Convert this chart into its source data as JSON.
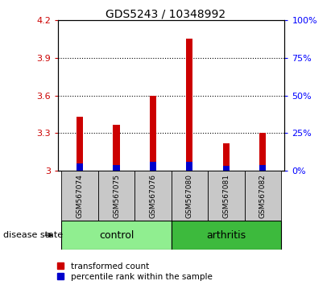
{
  "title": "GDS5243 / 10348992",
  "samples": [
    "GSM567074",
    "GSM567075",
    "GSM567076",
    "GSM567080",
    "GSM567081",
    "GSM567082"
  ],
  "red_values": [
    3.43,
    3.37,
    3.6,
    4.05,
    3.22,
    3.3
  ],
  "blue_values": [
    0.06,
    0.05,
    0.07,
    0.07,
    0.04,
    0.05
  ],
  "ymin": 3.0,
  "ymax": 4.2,
  "left_yticks": [
    3.0,
    3.3,
    3.6,
    3.9,
    4.2
  ],
  "right_yticks": [
    0,
    25,
    50,
    75,
    100
  ],
  "bar_width": 0.18,
  "red_color": "#cc0000",
  "blue_color": "#0000cc",
  "control_color": "#90ee90",
  "arthritis_color": "#3dba3d",
  "label_bg_color": "#c8c8c8",
  "group_label_text": "disease state",
  "legend_red": "transformed count",
  "legend_blue": "percentile rank within the sample",
  "title_fontsize": 10
}
